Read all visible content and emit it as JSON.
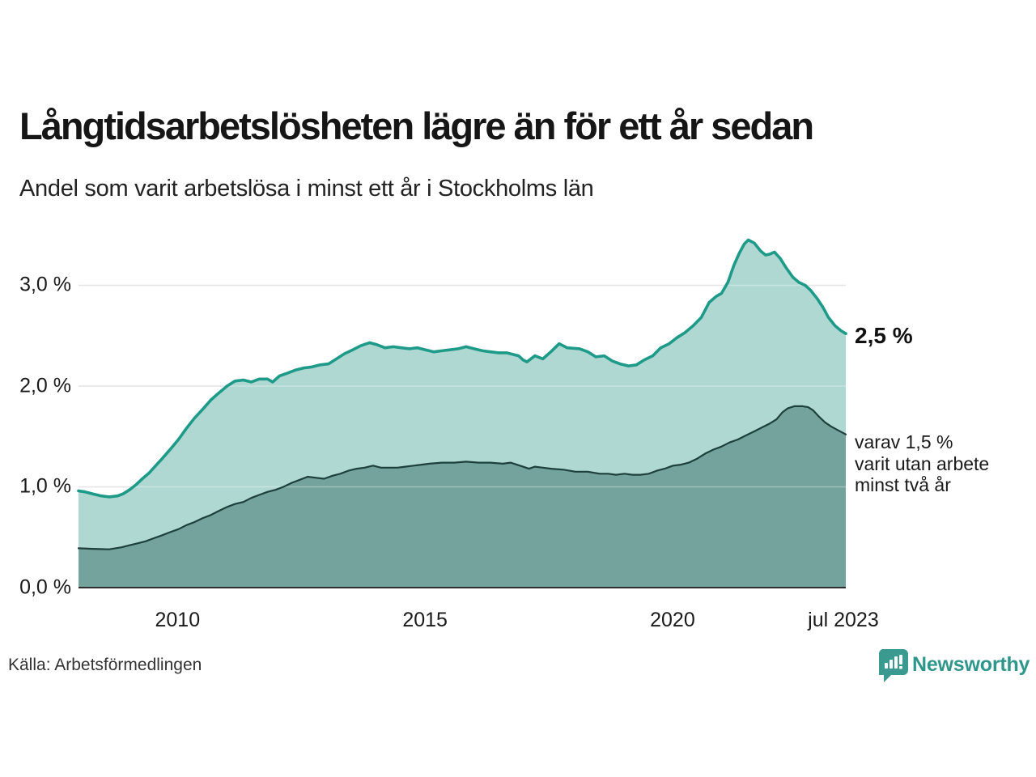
{
  "chart_data": {
    "type": "area",
    "title": "Långtidsarbetslösheten lägre än för ett år sedan",
    "subtitle": "Andel som varit arbetslösa i minst ett år i Stockholms län",
    "source": "Källa: Arbetsförmedlingen",
    "brand": "Newsworthy",
    "xlabel": "",
    "ylabel": "",
    "xlim": [
      2008.0,
      2023.5
    ],
    "ylim": [
      0,
      3.55
    ],
    "grid": "horizontal gridlines at 1.0, 2.0, 3.0",
    "legend": "none; end-of-line annotations at right",
    "y_ticks": [
      {
        "label": "0,0 %",
        "v": 0
      },
      {
        "label": "1,0 %",
        "v": 1
      },
      {
        "label": "2,0 %",
        "v": 2
      },
      {
        "label": "3,0 %",
        "v": 3
      }
    ],
    "x_ticks": [
      {
        "label": "2010",
        "x": 2010
      },
      {
        "label": "2015",
        "x": 2015
      },
      {
        "label": "2020",
        "x": 2020
      },
      {
        "label": "jul 2023",
        "x": 2023.45
      }
    ],
    "annotations": {
      "end_value": "2,5 %",
      "secondary_lines": [
        "varav 1,5 %",
        "varit utan arbete",
        "minst två år"
      ]
    },
    "series": [
      {
        "name": "Andel arbetslösa minst ett år",
        "end_value_pct": 2.5,
        "line_color": "#1e9a88",
        "fill_color": "#aed8d1",
        "line_width": 3.6,
        "points": [
          [
            2008.0,
            0.96
          ],
          [
            2008.13,
            0.95
          ],
          [
            2008.29,
            0.93
          ],
          [
            2008.46,
            0.91
          ],
          [
            2008.62,
            0.9
          ],
          [
            2008.79,
            0.91
          ],
          [
            2008.9,
            0.93
          ],
          [
            2009.03,
            0.97
          ],
          [
            2009.16,
            1.02
          ],
          [
            2009.29,
            1.08
          ],
          [
            2009.43,
            1.14
          ],
          [
            2009.56,
            1.21
          ],
          [
            2009.69,
            1.28
          ],
          [
            2009.85,
            1.37
          ],
          [
            2010.02,
            1.47
          ],
          [
            2010.18,
            1.58
          ],
          [
            2010.34,
            1.68
          ],
          [
            2010.51,
            1.77
          ],
          [
            2010.67,
            1.86
          ],
          [
            2010.83,
            1.93
          ],
          [
            2011.0,
            2.0
          ],
          [
            2011.16,
            2.05
          ],
          [
            2011.33,
            2.06
          ],
          [
            2011.49,
            2.04
          ],
          [
            2011.65,
            2.07
          ],
          [
            2011.82,
            2.07
          ],
          [
            2011.92,
            2.04
          ],
          [
            2012.06,
            2.1
          ],
          [
            2012.23,
            2.13
          ],
          [
            2012.39,
            2.16
          ],
          [
            2012.55,
            2.18
          ],
          [
            2012.72,
            2.19
          ],
          [
            2012.88,
            2.21
          ],
          [
            2013.05,
            2.22
          ],
          [
            2013.21,
            2.27
          ],
          [
            2013.37,
            2.32
          ],
          [
            2013.54,
            2.36
          ],
          [
            2013.7,
            2.4
          ],
          [
            2013.88,
            2.43
          ],
          [
            2014.03,
            2.41
          ],
          [
            2014.19,
            2.38
          ],
          [
            2014.36,
            2.39
          ],
          [
            2014.52,
            2.38
          ],
          [
            2014.68,
            2.37
          ],
          [
            2014.85,
            2.38
          ],
          [
            2015.01,
            2.36
          ],
          [
            2015.18,
            2.34
          ],
          [
            2015.34,
            2.35
          ],
          [
            2015.5,
            2.36
          ],
          [
            2015.67,
            2.37
          ],
          [
            2015.83,
            2.39
          ],
          [
            2015.99,
            2.37
          ],
          [
            2016.16,
            2.35
          ],
          [
            2016.32,
            2.34
          ],
          [
            2016.49,
            2.33
          ],
          [
            2016.65,
            2.33
          ],
          [
            2016.81,
            2.31
          ],
          [
            2016.89,
            2.3
          ],
          [
            2016.98,
            2.26
          ],
          [
            2017.06,
            2.24
          ],
          [
            2017.22,
            2.3
          ],
          [
            2017.38,
            2.27
          ],
          [
            2017.54,
            2.34
          ],
          [
            2017.71,
            2.42
          ],
          [
            2017.87,
            2.38
          ],
          [
            2018.12,
            2.37
          ],
          [
            2018.29,
            2.34
          ],
          [
            2018.45,
            2.29
          ],
          [
            2018.62,
            2.3
          ],
          [
            2018.78,
            2.25
          ],
          [
            2018.94,
            2.22
          ],
          [
            2019.11,
            2.2
          ],
          [
            2019.27,
            2.21
          ],
          [
            2019.43,
            2.26
          ],
          [
            2019.6,
            2.3
          ],
          [
            2019.76,
            2.38
          ],
          [
            2019.93,
            2.42
          ],
          [
            2020.09,
            2.48
          ],
          [
            2020.25,
            2.53
          ],
          [
            2020.42,
            2.6
          ],
          [
            2020.58,
            2.68
          ],
          [
            2020.74,
            2.83
          ],
          [
            2020.88,
            2.89
          ],
          [
            2020.99,
            2.92
          ],
          [
            2021.12,
            3.03
          ],
          [
            2021.24,
            3.2
          ],
          [
            2021.35,
            3.32
          ],
          [
            2021.45,
            3.41
          ],
          [
            2021.53,
            3.45
          ],
          [
            2021.65,
            3.42
          ],
          [
            2021.78,
            3.34
          ],
          [
            2021.88,
            3.3
          ],
          [
            2021.97,
            3.31
          ],
          [
            2022.06,
            3.33
          ],
          [
            2022.17,
            3.27
          ],
          [
            2022.3,
            3.17
          ],
          [
            2022.43,
            3.08
          ],
          [
            2022.55,
            3.03
          ],
          [
            2022.68,
            3.0
          ],
          [
            2022.79,
            2.95
          ],
          [
            2022.92,
            2.87
          ],
          [
            2023.04,
            2.78
          ],
          [
            2023.15,
            2.68
          ],
          [
            2023.28,
            2.6
          ],
          [
            2023.4,
            2.55
          ],
          [
            2023.5,
            2.52
          ]
        ]
      },
      {
        "name": "varav utan arbete minst två år",
        "end_value_pct": 1.5,
        "line_color": "#1e403d",
        "fill_color": "#74a39d",
        "line_width": 2.2,
        "points": [
          [
            2008.0,
            0.39
          ],
          [
            2008.29,
            0.385
          ],
          [
            2008.62,
            0.38
          ],
          [
            2008.87,
            0.4
          ],
          [
            2009.03,
            0.42
          ],
          [
            2009.2,
            0.44
          ],
          [
            2009.36,
            0.46
          ],
          [
            2009.52,
            0.49
          ],
          [
            2009.69,
            0.52
          ],
          [
            2009.85,
            0.55
          ],
          [
            2010.02,
            0.58
          ],
          [
            2010.18,
            0.62
          ],
          [
            2010.34,
            0.65
          ],
          [
            2010.51,
            0.69
          ],
          [
            2010.67,
            0.72
          ],
          [
            2010.83,
            0.76
          ],
          [
            2011.0,
            0.8
          ],
          [
            2011.16,
            0.83
          ],
          [
            2011.33,
            0.85
          ],
          [
            2011.49,
            0.89
          ],
          [
            2011.65,
            0.92
          ],
          [
            2011.82,
            0.95
          ],
          [
            2011.98,
            0.97
          ],
          [
            2012.14,
            1.0
          ],
          [
            2012.31,
            1.04
          ],
          [
            2012.47,
            1.07
          ],
          [
            2012.63,
            1.1
          ],
          [
            2012.8,
            1.09
          ],
          [
            2012.96,
            1.08
          ],
          [
            2013.13,
            1.11
          ],
          [
            2013.29,
            1.13
          ],
          [
            2013.45,
            1.16
          ],
          [
            2013.62,
            1.18
          ],
          [
            2013.78,
            1.19
          ],
          [
            2013.95,
            1.21
          ],
          [
            2014.11,
            1.19
          ],
          [
            2014.27,
            1.19
          ],
          [
            2014.44,
            1.19
          ],
          [
            2014.6,
            1.2
          ],
          [
            2014.77,
            1.21
          ],
          [
            2014.93,
            1.22
          ],
          [
            2015.09,
            1.23
          ],
          [
            2015.34,
            1.24
          ],
          [
            2015.59,
            1.24
          ],
          [
            2015.83,
            1.25
          ],
          [
            2016.08,
            1.24
          ],
          [
            2016.32,
            1.24
          ],
          [
            2016.57,
            1.23
          ],
          [
            2016.73,
            1.24
          ],
          [
            2016.98,
            1.2
          ],
          [
            2017.1,
            1.18
          ],
          [
            2017.22,
            1.2
          ],
          [
            2017.38,
            1.19
          ],
          [
            2017.55,
            1.18
          ],
          [
            2017.8,
            1.17
          ],
          [
            2018.04,
            1.15
          ],
          [
            2018.29,
            1.15
          ],
          [
            2018.53,
            1.13
          ],
          [
            2018.7,
            1.13
          ],
          [
            2018.86,
            1.12
          ],
          [
            2019.03,
            1.13
          ],
          [
            2019.19,
            1.12
          ],
          [
            2019.35,
            1.12
          ],
          [
            2019.52,
            1.13
          ],
          [
            2019.68,
            1.16
          ],
          [
            2019.84,
            1.18
          ],
          [
            2020.01,
            1.21
          ],
          [
            2020.17,
            1.22
          ],
          [
            2020.33,
            1.24
          ],
          [
            2020.5,
            1.28
          ],
          [
            2020.66,
            1.33
          ],
          [
            2020.83,
            1.37
          ],
          [
            2020.99,
            1.4
          ],
          [
            2021.15,
            1.44
          ],
          [
            2021.32,
            1.47
          ],
          [
            2021.48,
            1.51
          ],
          [
            2021.65,
            1.55
          ],
          [
            2021.81,
            1.59
          ],
          [
            2021.97,
            1.63
          ],
          [
            2022.1,
            1.67
          ],
          [
            2022.22,
            1.74
          ],
          [
            2022.33,
            1.78
          ],
          [
            2022.46,
            1.8
          ],
          [
            2022.63,
            1.8
          ],
          [
            2022.74,
            1.79
          ],
          [
            2022.84,
            1.76
          ],
          [
            2022.95,
            1.7
          ],
          [
            2023.08,
            1.64
          ],
          [
            2023.2,
            1.6
          ],
          [
            2023.35,
            1.56
          ],
          [
            2023.5,
            1.52
          ]
        ]
      }
    ]
  },
  "colors": {
    "background": "#ffffff",
    "grid": "#d9d9d9",
    "axis": "#2f2f2f",
    "text": "#1a1a1a",
    "brand_teal": "#2f968c",
    "logo_icon_teal": "#3a9a90"
  }
}
